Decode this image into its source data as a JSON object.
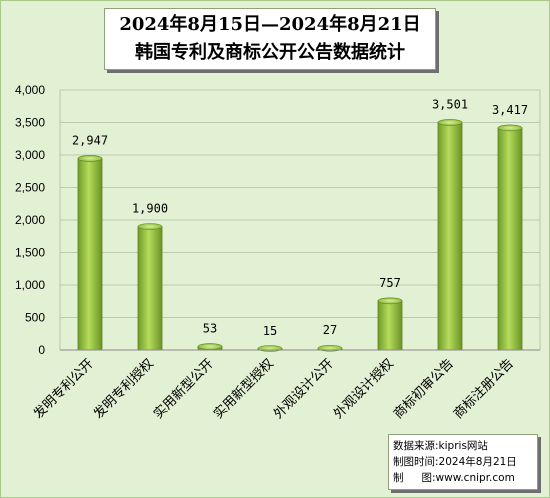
{
  "chart_data": {
    "type": "bar",
    "title_line1": "2024年8月15日—2024年8月21日",
    "title_line2": "韩国专利及商标公开公告数据统计",
    "categories": [
      "发明专利公开",
      "发明专利授权",
      "实用新型公开",
      "实用新型授权",
      "外观设计公开",
      "外观设计授权",
      "商标初审公告",
      "商标注册公告"
    ],
    "values": [
      2947,
      1900,
      53,
      15,
      27,
      757,
      3501,
      3417
    ],
    "value_labels": [
      "2,947",
      "1,900",
      "53",
      "15",
      "27",
      "757",
      "3,501",
      "3,417"
    ],
    "y_ticks": [
      "0",
      "500",
      "1,000",
      "1,500",
      "2,000",
      "2,500",
      "3,000",
      "3,500",
      "4,000"
    ],
    "ylim": [
      0,
      4000
    ],
    "grid": true,
    "bar_color": "#8bb83a",
    "background_color": "#e2f0d4"
  },
  "note": {
    "source_label": "数据来源:",
    "source_value": "kipris网站",
    "date_label": "制图时间:",
    "date_value": "2024年8月21日",
    "maker_label_a": "制",
    "maker_label_b": "图:",
    "maker_value": "www.cnipr.com"
  }
}
